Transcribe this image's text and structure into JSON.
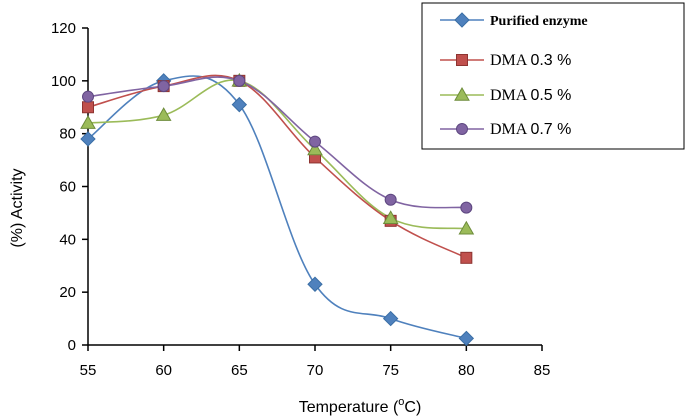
{
  "chart_data": {
    "type": "line",
    "xlabel": "Temperature",
    "xlabel_unit_prefix": "(",
    "xlabel_unit_sup": "o",
    "xlabel_unit_suffix": "C)",
    "ylabel": "(%) Activity",
    "xlim": [
      55,
      85
    ],
    "ylim": [
      0,
      120
    ],
    "xticks": [
      55,
      60,
      65,
      70,
      75,
      80,
      85
    ],
    "yticks": [
      0,
      20,
      40,
      60,
      80,
      100,
      120
    ],
    "grid": false,
    "legend_position": "top-right",
    "x": [
      55,
      60,
      65,
      70,
      75,
      80
    ],
    "series": [
      {
        "name": "Purified enzyme",
        "legend_word": "Purified enzyme",
        "legend_value": "",
        "color": "#4f81bd",
        "marker": "diamond",
        "values": [
          78,
          100,
          91,
          23,
          10,
          2.5
        ]
      },
      {
        "name": "DMA 0.3 %",
        "legend_word": "DMA",
        "legend_value": "0.3 %",
        "color": "#c0504d",
        "marker": "square",
        "values": [
          90,
          98,
          100,
          71,
          47,
          33
        ]
      },
      {
        "name": "DMA 0.5 %",
        "legend_word": "DMA",
        "legend_value": "0.5 %",
        "color": "#9bbb59",
        "marker": "triangle",
        "values": [
          84,
          87,
          100,
          74,
          48,
          44
        ]
      },
      {
        "name": "DMA 0.7 %",
        "legend_word": "DMA",
        "legend_value": "0.7 %",
        "color": "#8064a2",
        "marker": "circle",
        "values": [
          94,
          98,
          100,
          77,
          55,
          52
        ]
      }
    ]
  }
}
